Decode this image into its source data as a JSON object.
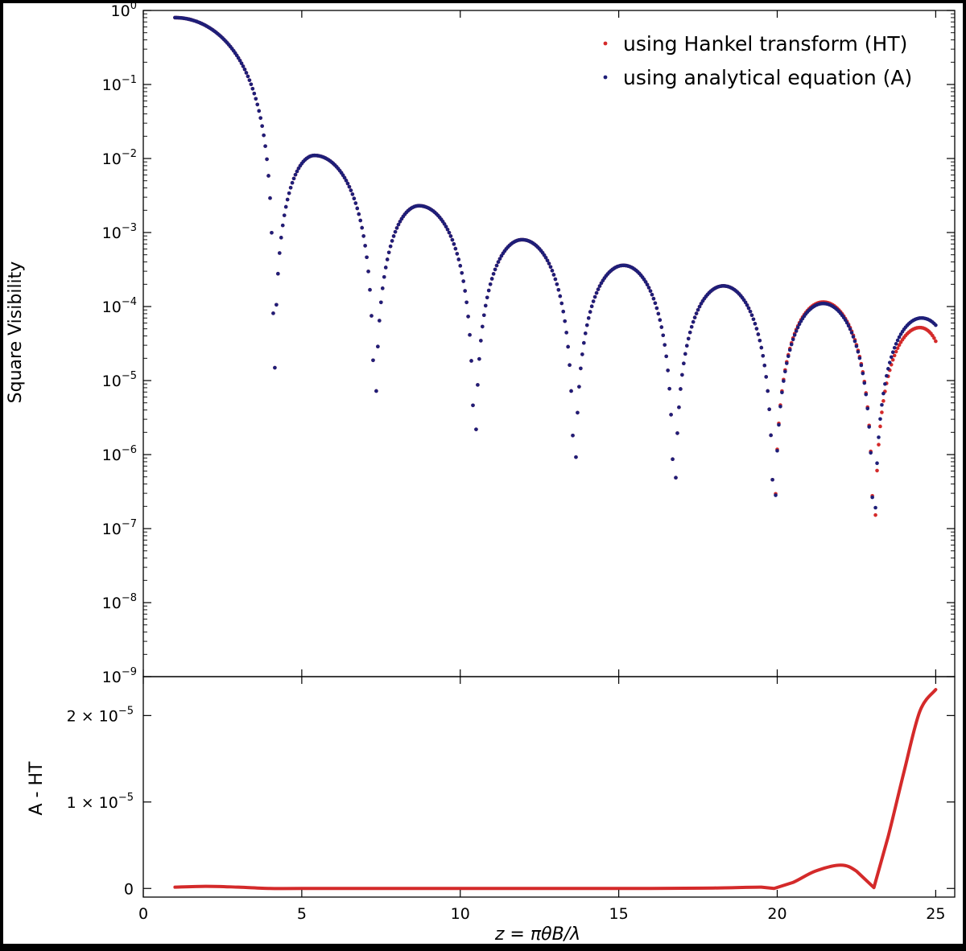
{
  "colors": {
    "background": "#ffffff",
    "outer_border": "#000000",
    "series_ht": "#d42a2a",
    "series_a": "#1e1e78"
  },
  "chart_data": [
    {
      "type": "scatter",
      "panel": "top",
      "ylabel": "Square Visibility",
      "yscale": "log",
      "xlim": [
        0,
        25.6
      ],
      "ylim": [
        1e-09,
        1
      ],
      "xticks": [
        0,
        5,
        10,
        15,
        20,
        25
      ],
      "yticks": [
        {
          "base": "10",
          "exp": "0"
        },
        {
          "base": "10",
          "exp": "−1"
        },
        {
          "base": "10",
          "exp": "−2"
        },
        {
          "base": "10",
          "exp": "−3"
        },
        {
          "base": "10",
          "exp": "−4"
        },
        {
          "base": "10",
          "exp": "−5"
        },
        {
          "base": "10",
          "exp": "−6"
        },
        {
          "base": "10",
          "exp": "−7"
        },
        {
          "base": "10",
          "exp": "−8"
        },
        {
          "base": "10",
          "exp": "−9"
        }
      ],
      "legend": {
        "placement": "top-right",
        "entries": [
          "using Hankel transform (HT)",
          "using analytical equation (A)"
        ]
      },
      "x_range_points": {
        "start": 1.0,
        "end": 25.0,
        "step": 0.05
      },
      "series": [
        {
          "name": "using Hankel transform (HT)",
          "marker": "dot",
          "peaks": [
            {
              "x": 1.0,
              "y": 0.8
            },
            {
              "x": 5.4,
              "y": 0.011
            },
            {
              "x": 8.7,
              "y": 0.0023
            },
            {
              "x": 11.95,
              "y": 0.0008
            },
            {
              "x": 15.15,
              "y": 0.00036
            },
            {
              "x": 18.3,
              "y": 0.00019
            },
            {
              "x": 21.45,
              "y": 0.000115
            },
            {
              "x": 24.5,
              "y": 5.2e-05
            }
          ],
          "end_value": {
            "x": 25.0,
            "y": 3.4e-05
          },
          "zeros": [
            4.12,
            7.3,
            10.45,
            13.6,
            16.75,
            19.9,
            23.05
          ]
        },
        {
          "name": "using analytical equation (A)",
          "marker": "dot",
          "peaks": [
            {
              "x": 1.0,
              "y": 0.8
            },
            {
              "x": 5.4,
              "y": 0.011
            },
            {
              "x": 8.7,
              "y": 0.0023
            },
            {
              "x": 11.95,
              "y": 0.0008
            },
            {
              "x": 15.15,
              "y": 0.00036
            },
            {
              "x": 18.3,
              "y": 0.00019
            },
            {
              "x": 21.45,
              "y": 0.00011
            },
            {
              "x": 24.55,
              "y": 7e-05
            }
          ],
          "end_value": {
            "x": 25.0,
            "y": 5.6e-05
          },
          "zeros": [
            4.12,
            7.3,
            10.45,
            13.6,
            16.75,
            19.9,
            23.05
          ]
        }
      ]
    },
    {
      "type": "line",
      "panel": "bottom",
      "xlabel": "z = πθB/λ",
      "ylabel": "A - HT",
      "xlim": [
        0,
        25.6
      ],
      "ylim": [
        -1e-06,
        2.45e-05
      ],
      "xticks": [
        0,
        5,
        10,
        15,
        20,
        25
      ],
      "yticks": [
        {
          "value": 0,
          "label": "0"
        },
        {
          "value": 1e-05,
          "label": "1 × 10",
          "exp": "−5"
        },
        {
          "value": 2e-05,
          "label": "2 × 10",
          "exp": "−5"
        }
      ],
      "series": [
        {
          "name": "A - HT",
          "x": [
            1,
            2,
            3,
            4,
            5,
            8,
            12,
            16,
            18,
            19.5,
            19.9,
            20.5,
            21.2,
            22.0,
            22.5,
            23.05,
            23.5,
            24.0,
            24.5,
            25.0
          ],
          "y": [
            1.5e-07,
            2.5e-07,
            1.5e-07,
            0,
            0,
            0,
            0,
            0,
            5e-08,
            1.5e-07,
            0,
            7e-07,
            2e-06,
            2.7e-06,
            2e-06,
            1e-07,
            6e-06,
            1.35e-05,
            2.05e-05,
            2.3e-05
          ]
        }
      ]
    }
  ]
}
